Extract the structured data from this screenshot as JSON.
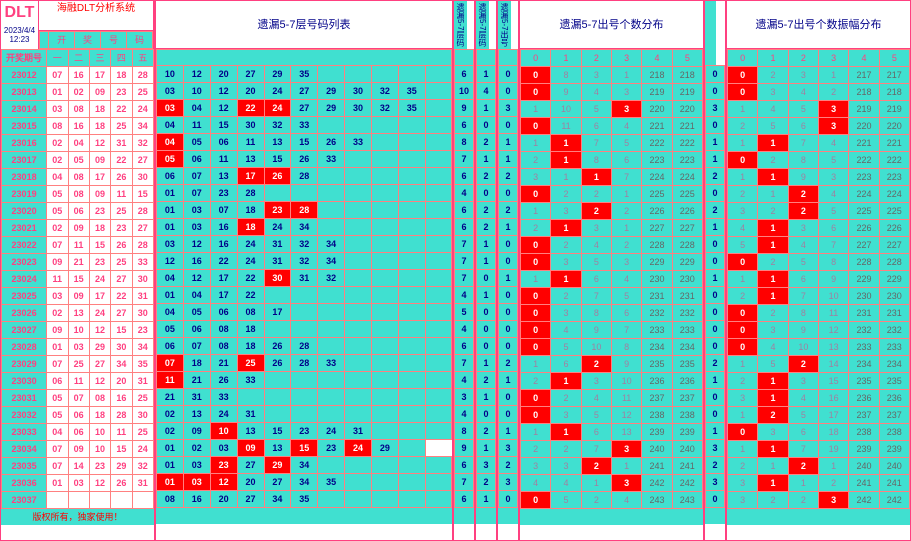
{
  "brand": "DLT",
  "sys": "海融DLT分析系统",
  "date": "2023/4/4 12:23",
  "perHdr": "开奖期号",
  "ballHdr": [
    "开",
    "奖",
    "号",
    "码"
  ],
  "ballSub": [
    "一",
    "二",
    "三",
    "四",
    "五"
  ],
  "midTitle": "遗漏5-7层号码列表",
  "narLabels": [
    "遗漏5-7层码",
    "遗漏5-7层码",
    "遗漏5-7出号"
  ],
  "distTitle1": "遗漏5-7出号个数分布",
  "distTitle2": "遗漏5-7出号个数振幅分布",
  "distCols": [
    "0",
    "1",
    "2",
    "3",
    "4",
    "5"
  ],
  "footer": "版权所有，独家使用！",
  "periods": [
    "23012",
    "23013",
    "23014",
    "23015",
    "23016",
    "23017",
    "23018",
    "23019",
    "23020",
    "23021",
    "23022",
    "23023",
    "23024",
    "23025",
    "23026",
    "23027",
    "23028",
    "23029",
    "23030",
    "23031",
    "23032",
    "23033",
    "23034",
    "23035",
    "23036",
    "23037"
  ],
  "balls": [
    [
      "07",
      "16",
      "17",
      "18",
      "28"
    ],
    [
      "01",
      "02",
      "09",
      "23",
      "25"
    ],
    [
      "03",
      "08",
      "18",
      "22",
      "24"
    ],
    [
      "08",
      "16",
      "18",
      "25",
      "34"
    ],
    [
      "02",
      "04",
      "12",
      "31",
      "32"
    ],
    [
      "02",
      "05",
      "09",
      "22",
      "27"
    ],
    [
      "04",
      "08",
      "17",
      "26",
      "30"
    ],
    [
      "05",
      "08",
      "09",
      "11",
      "15"
    ],
    [
      "05",
      "06",
      "23",
      "25",
      "28"
    ],
    [
      "02",
      "09",
      "18",
      "23",
      "27"
    ],
    [
      "07",
      "11",
      "15",
      "26",
      "28"
    ],
    [
      "09",
      "21",
      "23",
      "25",
      "33"
    ],
    [
      "11",
      "15",
      "24",
      "27",
      "30"
    ],
    [
      "03",
      "09",
      "17",
      "22",
      "31"
    ],
    [
      "02",
      "13",
      "24",
      "27",
      "30"
    ],
    [
      "09",
      "10",
      "12",
      "15",
      "23"
    ],
    [
      "01",
      "03",
      "29",
      "30",
      "34"
    ],
    [
      "07",
      "25",
      "27",
      "34",
      "35"
    ],
    [
      "06",
      "11",
      "12",
      "20",
      "31"
    ],
    [
      "05",
      "07",
      "08",
      "16",
      "25"
    ],
    [
      "05",
      "06",
      "18",
      "28",
      "30"
    ],
    [
      "04",
      "06",
      "10",
      "11",
      "25"
    ],
    [
      "07",
      "09",
      "10",
      "15",
      "24"
    ],
    [
      "07",
      "14",
      "23",
      "29",
      "32"
    ],
    [
      "01",
      "03",
      "12",
      "26",
      "31"
    ],
    [
      "",
      "",
      "",
      "",
      ""
    ]
  ],
  "codes": [
    [
      [
        "10",
        0
      ],
      [
        "12",
        0
      ],
      [
        "20",
        0
      ],
      [
        "27",
        0
      ],
      [
        "29",
        0
      ],
      [
        "35",
        0
      ],
      [
        "",
        0
      ],
      [
        "",
        0
      ],
      [
        "",
        0
      ],
      [
        "",
        0
      ],
      [
        "",
        0
      ]
    ],
    [
      [
        "03",
        0
      ],
      [
        "10",
        0
      ],
      [
        "12",
        0
      ],
      [
        "20",
        0
      ],
      [
        "24",
        0
      ],
      [
        "27",
        0
      ],
      [
        "29",
        0
      ],
      [
        "30",
        0
      ],
      [
        "32",
        0
      ],
      [
        "35",
        0
      ],
      [
        "",
        0
      ]
    ],
    [
      [
        "03",
        1
      ],
      [
        "04",
        0
      ],
      [
        "12",
        0
      ],
      [
        "22",
        1
      ],
      [
        "24",
        1
      ],
      [
        "27",
        0
      ],
      [
        "29",
        0
      ],
      [
        "30",
        0
      ],
      [
        "32",
        0
      ],
      [
        "35",
        0
      ],
      [
        "",
        0
      ]
    ],
    [
      [
        "04",
        0
      ],
      [
        "11",
        0
      ],
      [
        "15",
        0
      ],
      [
        "30",
        0
      ],
      [
        "32",
        0
      ],
      [
        "33",
        0
      ],
      [
        "",
        0
      ],
      [
        "",
        0
      ],
      [
        "",
        0
      ],
      [
        "",
        0
      ],
      [
        "",
        0
      ]
    ],
    [
      [
        "04",
        1
      ],
      [
        "05",
        0
      ],
      [
        "06",
        0
      ],
      [
        "11",
        0
      ],
      [
        "13",
        0
      ],
      [
        "15",
        0
      ],
      [
        "26",
        0
      ],
      [
        "33",
        0
      ],
      [
        "",
        0
      ],
      [
        "",
        0
      ],
      [
        "",
        0
      ]
    ],
    [
      [
        "05",
        1
      ],
      [
        "06",
        0
      ],
      [
        "11",
        0
      ],
      [
        "13",
        0
      ],
      [
        "15",
        0
      ],
      [
        "26",
        0
      ],
      [
        "33",
        0
      ],
      [
        "",
        0
      ],
      [
        "",
        0
      ],
      [
        "",
        0
      ],
      [
        "",
        0
      ]
    ],
    [
      [
        "06",
        0
      ],
      [
        "07",
        0
      ],
      [
        "13",
        0
      ],
      [
        "17",
        1
      ],
      [
        "26",
        1
      ],
      [
        "28",
        0
      ],
      [
        "",
        0
      ],
      [
        "",
        0
      ],
      [
        "",
        0
      ],
      [
        "",
        0
      ],
      [
        "",
        0
      ]
    ],
    [
      [
        "01",
        0
      ],
      [
        "07",
        0
      ],
      [
        "23",
        0
      ],
      [
        "28",
        0
      ],
      [
        "",
        0
      ],
      [
        "",
        0
      ],
      [
        "",
        0
      ],
      [
        "",
        0
      ],
      [
        "",
        0
      ],
      [
        "",
        0
      ],
      [
        "",
        0
      ]
    ],
    [
      [
        "01",
        0
      ],
      [
        "03",
        0
      ],
      [
        "07",
        0
      ],
      [
        "18",
        0
      ],
      [
        "23",
        1
      ],
      [
        "28",
        1
      ],
      [
        "",
        0
      ],
      [
        "",
        0
      ],
      [
        "",
        0
      ],
      [
        "",
        0
      ],
      [
        "",
        0
      ]
    ],
    [
      [
        "01",
        0
      ],
      [
        "03",
        0
      ],
      [
        "16",
        0
      ],
      [
        "18",
        1
      ],
      [
        "24",
        0
      ],
      [
        "34",
        0
      ],
      [
        "",
        0
      ],
      [
        "",
        0
      ],
      [
        "",
        0
      ],
      [
        "",
        0
      ],
      [
        "",
        0
      ]
    ],
    [
      [
        "03",
        0
      ],
      [
        "12",
        0
      ],
      [
        "16",
        0
      ],
      [
        "24",
        0
      ],
      [
        "31",
        0
      ],
      [
        "32",
        0
      ],
      [
        "34",
        0
      ],
      [
        "",
        0
      ],
      [
        "",
        0
      ],
      [
        "",
        0
      ],
      [
        "",
        0
      ]
    ],
    [
      [
        "12",
        0
      ],
      [
        "16",
        0
      ],
      [
        "22",
        0
      ],
      [
        "24",
        0
      ],
      [
        "31",
        0
      ],
      [
        "32",
        0
      ],
      [
        "34",
        0
      ],
      [
        "",
        0
      ],
      [
        "",
        0
      ],
      [
        "",
        0
      ],
      [
        "",
        0
      ]
    ],
    [
      [
        "04",
        0
      ],
      [
        "12",
        0
      ],
      [
        "17",
        0
      ],
      [
        "22",
        0
      ],
      [
        "30",
        1
      ],
      [
        "31",
        0
      ],
      [
        "32",
        0
      ],
      [
        "",
        0
      ],
      [
        "",
        0
      ],
      [
        "",
        0
      ],
      [
        "",
        0
      ]
    ],
    [
      [
        "01",
        0
      ],
      [
        "04",
        0
      ],
      [
        "17",
        0
      ],
      [
        "22",
        0
      ],
      [
        "",
        0
      ],
      [
        "",
        0
      ],
      [
        "",
        0
      ],
      [
        "",
        0
      ],
      [
        "",
        0
      ],
      [
        "",
        0
      ],
      [
        "",
        0
      ]
    ],
    [
      [
        "04",
        0
      ],
      [
        "05",
        0
      ],
      [
        "06",
        0
      ],
      [
        "08",
        0
      ],
      [
        "17",
        0
      ],
      [
        "",
        0
      ],
      [
        "",
        0
      ],
      [
        "",
        0
      ],
      [
        "",
        0
      ],
      [
        "",
        0
      ],
      [
        "",
        0
      ]
    ],
    [
      [
        "05",
        0
      ],
      [
        "06",
        0
      ],
      [
        "08",
        0
      ],
      [
        "18",
        0
      ],
      [
        "",
        0
      ],
      [
        "",
        0
      ],
      [
        "",
        0
      ],
      [
        "",
        0
      ],
      [
        "",
        0
      ],
      [
        "",
        0
      ],
      [
        "",
        0
      ]
    ],
    [
      [
        "06",
        0
      ],
      [
        "07",
        0
      ],
      [
        "08",
        0
      ],
      [
        "18",
        0
      ],
      [
        "26",
        0
      ],
      [
        "28",
        0
      ],
      [
        "",
        0
      ],
      [
        "",
        0
      ],
      [
        "",
        0
      ],
      [
        "",
        0
      ],
      [
        "",
        0
      ]
    ],
    [
      [
        "07",
        1
      ],
      [
        "18",
        0
      ],
      [
        "21",
        0
      ],
      [
        "25",
        1
      ],
      [
        "26",
        0
      ],
      [
        "28",
        0
      ],
      [
        "33",
        0
      ],
      [
        "",
        0
      ],
      [
        "",
        0
      ],
      [
        "",
        0
      ],
      [
        "",
        0
      ]
    ],
    [
      [
        "11",
        1
      ],
      [
        "21",
        0
      ],
      [
        "26",
        0
      ],
      [
        "33",
        0
      ],
      [
        "",
        0
      ],
      [
        "",
        0
      ],
      [
        "",
        0
      ],
      [
        "",
        0
      ],
      [
        "",
        0
      ],
      [
        "",
        0
      ],
      [
        "",
        0
      ]
    ],
    [
      [
        "21",
        0
      ],
      [
        "31",
        0
      ],
      [
        "33",
        0
      ],
      [
        "",
        0
      ],
      [
        "",
        0
      ],
      [
        "",
        0
      ],
      [
        "",
        0
      ],
      [
        "",
        0
      ],
      [
        "",
        0
      ],
      [
        "",
        0
      ],
      [
        "",
        0
      ]
    ],
    [
      [
        "02",
        0
      ],
      [
        "13",
        0
      ],
      [
        "24",
        0
      ],
      [
        "31",
        0
      ],
      [
        "",
        0
      ],
      [
        "",
        0
      ],
      [
        "",
        0
      ],
      [
        "",
        0
      ],
      [
        "",
        0
      ],
      [
        "",
        0
      ],
      [
        "",
        0
      ]
    ],
    [
      [
        "02",
        0
      ],
      [
        "09",
        0
      ],
      [
        "10",
        1
      ],
      [
        "13",
        0
      ],
      [
        "15",
        0
      ],
      [
        "23",
        0
      ],
      [
        "24",
        0
      ],
      [
        "31",
        0
      ],
      [
        "",
        0
      ],
      [
        "",
        0
      ],
      [
        "",
        0
      ]
    ],
    [
      [
        "01",
        0
      ],
      [
        "02",
        0
      ],
      [
        "03",
        0
      ],
      [
        "09",
        1
      ],
      [
        "13",
        0
      ],
      [
        "15",
        1
      ],
      [
        "23",
        0
      ],
      [
        "24",
        1
      ],
      [
        "29",
        0
      ],
      [
        "",
        0
      ]
    ],
    [
      [
        "01",
        0
      ],
      [
        "03",
        0
      ],
      [
        "23",
        1
      ],
      [
        "27",
        0
      ],
      [
        "29",
        1
      ],
      [
        "34",
        0
      ],
      [
        "",
        0
      ],
      [
        "",
        0
      ],
      [
        "",
        0
      ],
      [
        "",
        0
      ],
      [
        "",
        0
      ]
    ],
    [
      [
        "01",
        1
      ],
      [
        "03",
        1
      ],
      [
        "12",
        1
      ],
      [
        "20",
        0
      ],
      [
        "27",
        0
      ],
      [
        "34",
        0
      ],
      [
        "35",
        0
      ],
      [
        "",
        0
      ],
      [
        "",
        0
      ],
      [
        "",
        0
      ],
      [
        "",
        0
      ]
    ],
    [
      [
        "08",
        0
      ],
      [
        "16",
        0
      ],
      [
        "20",
        0
      ],
      [
        "27",
        0
      ],
      [
        "34",
        0
      ],
      [
        "35",
        0
      ],
      [
        "",
        0
      ],
      [
        "",
        0
      ],
      [
        "",
        0
      ],
      [
        "",
        0
      ],
      [
        "",
        0
      ]
    ]
  ],
  "nar1": [
    "6",
    "10",
    "9",
    "6",
    "8",
    "7",
    "6",
    "4",
    "6",
    "6",
    "7",
    "7",
    "7",
    "4",
    "5",
    "4",
    "6",
    "7",
    "4",
    "3",
    "4",
    "8",
    "9",
    "6",
    "7",
    "6"
  ],
  "nar2": [
    "1",
    "4",
    "1",
    "0",
    "2",
    "1",
    "2",
    "0",
    "2",
    "2",
    "1",
    "1",
    "0",
    "1",
    "0",
    "0",
    "0",
    "1",
    "2",
    "1",
    "0",
    "2",
    "1",
    "3",
    "2",
    "1"
  ],
  "nar3": [
    "0",
    "0",
    "3",
    "0",
    "1",
    "1",
    "2",
    "0",
    "2",
    "1",
    "0",
    "0",
    "1",
    "0",
    "0",
    "0",
    "0",
    "2",
    "1",
    "0",
    "0",
    "1",
    "3",
    "2",
    "3",
    "0"
  ],
  "dist1": [
    [
      "0",
      "8",
      "3",
      "1",
      "218",
      "218"
    ],
    [
      "0",
      "9",
      "4",
      "3",
      "219",
      "219"
    ],
    [
      "1",
      "10",
      "5",
      "3",
      "220",
      "220"
    ],
    [
      "0",
      "11",
      "6",
      "4",
      "221",
      "221"
    ],
    [
      "1",
      "1",
      "7",
      "5",
      "222",
      "222"
    ],
    [
      "2",
      "1",
      "8",
      "6",
      "223",
      "223"
    ],
    [
      "3",
      "1",
      "1",
      "7",
      "224",
      "224"
    ],
    [
      "0",
      "2",
      "2",
      "1",
      "225",
      "225"
    ],
    [
      "1",
      "3",
      "2",
      "2",
      "226",
      "226"
    ],
    [
      "2",
      "1",
      "3",
      "1",
      "227",
      "227"
    ],
    [
      "0",
      "2",
      "4",
      "2",
      "228",
      "228"
    ],
    [
      "0",
      "3",
      "5",
      "3",
      "229",
      "229"
    ],
    [
      "1",
      "1",
      "6",
      "4",
      "230",
      "230"
    ],
    [
      "0",
      "2",
      "7",
      "5",
      "231",
      "231"
    ],
    [
      "0",
      "3",
      "8",
      "6",
      "232",
      "232"
    ],
    [
      "0",
      "4",
      "9",
      "7",
      "233",
      "233"
    ],
    [
      "0",
      "5",
      "10",
      "8",
      "234",
      "234"
    ],
    [
      "1",
      "6",
      "2",
      "9",
      "235",
      "235"
    ],
    [
      "2",
      "1",
      "3",
      "10",
      "236",
      "236"
    ],
    [
      "0",
      "2",
      "4",
      "11",
      "237",
      "237"
    ],
    [
      "0",
      "3",
      "5",
      "12",
      "238",
      "238"
    ],
    [
      "1",
      "1",
      "6",
      "13",
      "239",
      "239"
    ],
    [
      "2",
      "2",
      "7",
      "3",
      "240",
      "240"
    ],
    [
      "3",
      "3",
      "2",
      "1",
      "241",
      "241"
    ],
    [
      "4",
      "4",
      "1",
      "3",
      "242",
      "242"
    ],
    [
      "0",
      "5",
      "2",
      "4",
      "243",
      "243"
    ]
  ],
  "distZ1": [
    0,
    0,
    3,
    0,
    1,
    1,
    2,
    0,
    2,
    1,
    0,
    0,
    1,
    0,
    0,
    0,
    0,
    2,
    1,
    0,
    0,
    1,
    3,
    2,
    3,
    0
  ],
  "dist2": [
    [
      "0",
      "2",
      "3",
      "1",
      "217",
      "217"
    ],
    [
      "0",
      "3",
      "4",
      "2",
      "218",
      "218"
    ],
    [
      "1",
      "4",
      "5",
      "3",
      "219",
      "219"
    ],
    [
      "2",
      "5",
      "6",
      "3",
      "220",
      "220"
    ],
    [
      "1",
      "1",
      "7",
      "4",
      "221",
      "221"
    ],
    [
      "0",
      "2",
      "8",
      "5",
      "222",
      "222"
    ],
    [
      "1",
      "1",
      "9",
      "3",
      "223",
      "223"
    ],
    [
      "2",
      "1",
      "2",
      "4",
      "224",
      "224"
    ],
    [
      "3",
      "2",
      "2",
      "5",
      "225",
      "225"
    ],
    [
      "4",
      "1",
      "3",
      "6",
      "226",
      "226"
    ],
    [
      "5",
      "1",
      "4",
      "7",
      "227",
      "227"
    ],
    [
      "0",
      "2",
      "5",
      "8",
      "228",
      "228"
    ],
    [
      "1",
      "1",
      "6",
      "9",
      "229",
      "229"
    ],
    [
      "2",
      "1",
      "7",
      "10",
      "230",
      "230"
    ],
    [
      "0",
      "2",
      "8",
      "11",
      "231",
      "231"
    ],
    [
      "0",
      "3",
      "9",
      "12",
      "232",
      "232"
    ],
    [
      "0",
      "4",
      "10",
      "13",
      "233",
      "233"
    ],
    [
      "1",
      "5",
      "2",
      "14",
      "234",
      "234"
    ],
    [
      "2",
      "1",
      "3",
      "15",
      "235",
      "235"
    ],
    [
      "3",
      "1",
      "4",
      "16",
      "236",
      "236"
    ],
    [
      "1",
      "2",
      "5",
      "17",
      "237",
      "237"
    ],
    [
      "0",
      "3",
      "6",
      "18",
      "238",
      "238"
    ],
    [
      "1",
      "1",
      "7",
      "19",
      "239",
      "239"
    ],
    [
      "2",
      "1",
      "2",
      "1",
      "240",
      "240"
    ],
    [
      "3",
      "1",
      "1",
      "2",
      "241",
      "241"
    ],
    [
      "3",
      "2",
      "2",
      "3",
      "242",
      "242"
    ]
  ],
  "distZ2": [
    0,
    0,
    3,
    3,
    1,
    0,
    1,
    2,
    2,
    1,
    1,
    0,
    1,
    1,
    0,
    0,
    0,
    2,
    1,
    1,
    1,
    0,
    1,
    2,
    1,
    3
  ]
}
